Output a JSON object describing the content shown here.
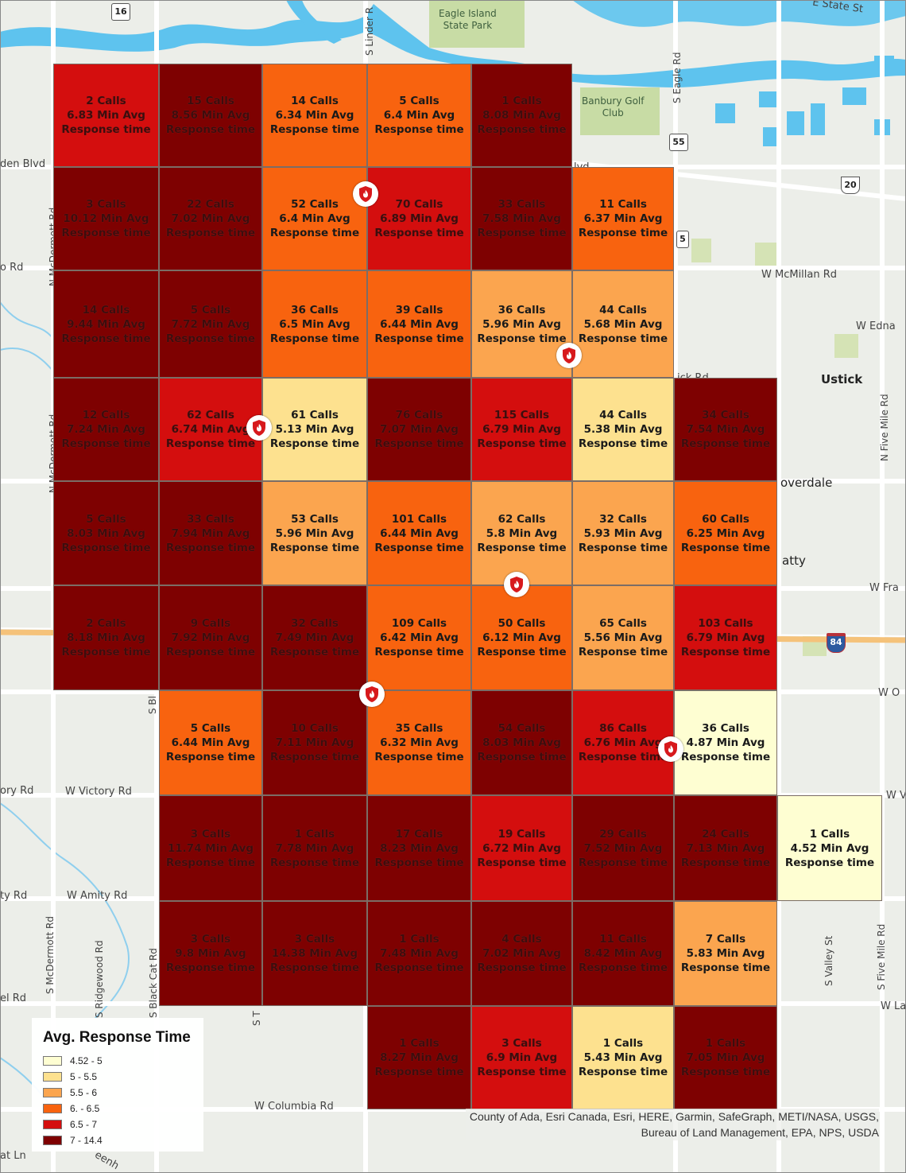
{
  "colors": {
    "bin1": "#fefed2",
    "bin2": "#fde18f",
    "bin3": "#fba54f",
    "bin4": "#f8630f",
    "bin5": "#d40e0e",
    "bin6": "#7e0101",
    "water": "#5ec3ee",
    "park": "#c8dca5",
    "land": "#eceee9",
    "road": "#ffffff"
  },
  "legend": {
    "title": "Avg. Response Time",
    "items": [
      {
        "label": "4.52 - 5",
        "bin": "bin1"
      },
      {
        "label": "5 - 5.5",
        "bin": "bin2"
      },
      {
        "label": "5.5 - 6",
        "bin": "bin3"
      },
      {
        "label": "6. - 6.5",
        "bin": "bin4"
      },
      {
        "label": "6.5 - 7",
        "bin": "bin5"
      },
      {
        "label": "7 - 14.4",
        "bin": "bin6"
      }
    ]
  },
  "credits": {
    "line1": "County of Ada, Esri Canada, Esri, HERE, Garmin, SafeGraph, METI/NASA, USGS,",
    "line2": "Bureau of Land Management, EPA, NPS, USDA"
  },
  "cell_suffix": "Response time",
  "cells": [
    {
      "row": 0,
      "col": 0,
      "calls": "2 Calls",
      "avg": "6.83 Min Avg",
      "bin": "bin5"
    },
    {
      "row": 0,
      "col": 1,
      "calls": "15 Calls",
      "avg": "8.56 Min Avg",
      "bin": "bin6"
    },
    {
      "row": 0,
      "col": 2,
      "calls": "14 Calls",
      "avg": "6.34 Min Avg",
      "bin": "bin4"
    },
    {
      "row": 0,
      "col": 3,
      "calls": "5 Calls",
      "avg": "6.4 Min Avg",
      "bin": "bin4"
    },
    {
      "row": 0,
      "col": 4,
      "calls": "1 Calls",
      "avg": "8.08 Min Avg",
      "bin": "bin6"
    },
    {
      "row": 1,
      "col": 0,
      "calls": "3 Calls",
      "avg": "10.12 Min Avg",
      "bin": "bin6"
    },
    {
      "row": 1,
      "col": 1,
      "calls": "22 Calls",
      "avg": "7.02 Min Avg",
      "bin": "bin6"
    },
    {
      "row": 1,
      "col": 2,
      "calls": "52 Calls",
      "avg": "6.4 Min Avg",
      "bin": "bin4"
    },
    {
      "row": 1,
      "col": 3,
      "calls": "70 Calls",
      "avg": "6.89 Min Avg",
      "bin": "bin5"
    },
    {
      "row": 1,
      "col": 4,
      "calls": "33 Calls",
      "avg": "7.58 Min Avg",
      "bin": "bin6"
    },
    {
      "row": 1,
      "col": 5,
      "calls": "11 Calls",
      "avg": "6.37 Min Avg",
      "bin": "bin4"
    },
    {
      "row": 2,
      "col": 0,
      "calls": "14 Calls",
      "avg": "9.44 Min Avg",
      "bin": "bin6"
    },
    {
      "row": 2,
      "col": 1,
      "calls": "5 Calls",
      "avg": "7.72 Min Avg",
      "bin": "bin6"
    },
    {
      "row": 2,
      "col": 2,
      "calls": "36 Calls",
      "avg": "6.5 Min Avg",
      "bin": "bin4"
    },
    {
      "row": 2,
      "col": 3,
      "calls": "39 Calls",
      "avg": "6.44 Min Avg",
      "bin": "bin4"
    },
    {
      "row": 2,
      "col": 4,
      "calls": "36 Calls",
      "avg": "5.96 Min Avg",
      "bin": "bin3"
    },
    {
      "row": 2,
      "col": 5,
      "calls": "44 Calls",
      "avg": "5.68 Min Avg",
      "bin": "bin3"
    },
    {
      "row": 3,
      "col": 0,
      "calls": "12 Calls",
      "avg": "7.24 Min Avg",
      "bin": "bin6"
    },
    {
      "row": 3,
      "col": 1,
      "calls": "62 Calls",
      "avg": "6.74 Min Avg",
      "bin": "bin5"
    },
    {
      "row": 3,
      "col": 2,
      "calls": "61 Calls",
      "avg": "5.13 Min Avg",
      "bin": "bin2"
    },
    {
      "row": 3,
      "col": 3,
      "calls": "76 Calls",
      "avg": "7.07 Min Avg",
      "bin": "bin6"
    },
    {
      "row": 3,
      "col": 4,
      "calls": "115 Calls",
      "avg": "6.79 Min Avg",
      "bin": "bin5"
    },
    {
      "row": 3,
      "col": 5,
      "calls": "44 Calls",
      "avg": "5.38 Min Avg",
      "bin": "bin2"
    },
    {
      "row": 3,
      "col": 6,
      "calls": "34 Calls",
      "avg": "7.54 Min Avg",
      "bin": "bin6"
    },
    {
      "row": 4,
      "col": 0,
      "calls": "5 Calls",
      "avg": "8.03 Min Avg",
      "bin": "bin6"
    },
    {
      "row": 4,
      "col": 1,
      "calls": "33 Calls",
      "avg": "7.94 Min Avg",
      "bin": "bin6"
    },
    {
      "row": 4,
      "col": 2,
      "calls": "53 Calls",
      "avg": "5.96 Min Avg",
      "bin": "bin3"
    },
    {
      "row": 4,
      "col": 3,
      "calls": "101 Calls",
      "avg": "6.44 Min Avg",
      "bin": "bin4"
    },
    {
      "row": 4,
      "col": 4,
      "calls": "62 Calls",
      "avg": "5.8 Min Avg",
      "bin": "bin3"
    },
    {
      "row": 4,
      "col": 5,
      "calls": "32 Calls",
      "avg": "5.93 Min Avg",
      "bin": "bin3"
    },
    {
      "row": 4,
      "col": 6,
      "calls": "60 Calls",
      "avg": "6.25 Min Avg",
      "bin": "bin4"
    },
    {
      "row": 5,
      "col": 0,
      "calls": "2 Calls",
      "avg": "8.18 Min Avg",
      "bin": "bin6"
    },
    {
      "row": 5,
      "col": 1,
      "calls": "9 Calls",
      "avg": "7.92 Min Avg",
      "bin": "bin6"
    },
    {
      "row": 5,
      "col": 2,
      "calls": "32 Calls",
      "avg": "7.49 Min Avg",
      "bin": "bin6"
    },
    {
      "row": 5,
      "col": 3,
      "calls": "109 Calls",
      "avg": "6.42 Min Avg",
      "bin": "bin4"
    },
    {
      "row": 5,
      "col": 4,
      "calls": "50 Calls",
      "avg": "6.12 Min Avg",
      "bin": "bin4"
    },
    {
      "row": 5,
      "col": 5,
      "calls": "65 Calls",
      "avg": "5.56 Min Avg",
      "bin": "bin3"
    },
    {
      "row": 5,
      "col": 6,
      "calls": "103 Calls",
      "avg": "6.79 Min Avg",
      "bin": "bin5"
    },
    {
      "row": 6,
      "col": 1,
      "calls": "5 Calls",
      "avg": "6.44 Min Avg",
      "bin": "bin4"
    },
    {
      "row": 6,
      "col": 2,
      "calls": "10 Calls",
      "avg": "7.11 Min Avg",
      "bin": "bin6"
    },
    {
      "row": 6,
      "col": 3,
      "calls": "35 Calls",
      "avg": "6.32 Min Avg",
      "bin": "bin4"
    },
    {
      "row": 6,
      "col": 4,
      "calls": "54 Calls",
      "avg": "8.03 Min Avg",
      "bin": "bin6"
    },
    {
      "row": 6,
      "col": 5,
      "calls": "86 Calls",
      "avg": "6.76 Min Avg",
      "bin": "bin5"
    },
    {
      "row": 6,
      "col": 6,
      "calls": "36 Calls",
      "avg": "4.87 Min Avg",
      "bin": "bin1"
    },
    {
      "row": 7,
      "col": 1,
      "calls": "3 Calls",
      "avg": "11.74 Min Avg",
      "bin": "bin6"
    },
    {
      "row": 7,
      "col": 2,
      "calls": "1 Calls",
      "avg": "7.78 Min Avg",
      "bin": "bin6"
    },
    {
      "row": 7,
      "col": 3,
      "calls": "17 Calls",
      "avg": "8.23 Min Avg",
      "bin": "bin6"
    },
    {
      "row": 7,
      "col": 4,
      "calls": "19 Calls",
      "avg": "6.72 Min Avg",
      "bin": "bin5"
    },
    {
      "row": 7,
      "col": 5,
      "calls": "29 Calls",
      "avg": "7.52 Min Avg",
      "bin": "bin6"
    },
    {
      "row": 7,
      "col": 6,
      "calls": "24 Calls",
      "avg": "7.13 Min Avg",
      "bin": "bin6"
    },
    {
      "row": 7,
      "col": 7,
      "calls": "1 Calls",
      "avg": "4.52 Min Avg",
      "bin": "bin1"
    },
    {
      "row": 8,
      "col": 1,
      "calls": "3 Calls",
      "avg": "9.8 Min Avg",
      "bin": "bin6"
    },
    {
      "row": 8,
      "col": 2,
      "calls": "3 Calls",
      "avg": "14.38 Min Avg",
      "bin": "bin6"
    },
    {
      "row": 8,
      "col": 3,
      "calls": "1 Calls",
      "avg": "7.48 Min Avg",
      "bin": "bin6"
    },
    {
      "row": 8,
      "col": 4,
      "calls": "4 Calls",
      "avg": "7.02 Min Avg",
      "bin": "bin6"
    },
    {
      "row": 8,
      "col": 5,
      "calls": "11 Calls",
      "avg": "8.42 Min Avg",
      "bin": "bin6"
    },
    {
      "row": 8,
      "col": 6,
      "calls": "7 Calls",
      "avg": "5.83 Min Avg",
      "bin": "bin3"
    },
    {
      "row": 9,
      "col": 3,
      "calls": "1 Calls",
      "avg": "8.27 Min Avg",
      "bin": "bin6"
    },
    {
      "row": 9,
      "col": 4,
      "calls": "3 Calls",
      "avg": "6.9 Min Avg",
      "bin": "bin5"
    },
    {
      "row": 9,
      "col": 5,
      "calls": "1 Calls",
      "avg": "5.43 Min Avg",
      "bin": "bin2"
    },
    {
      "row": 9,
      "col": 6,
      "calls": "1 Calls",
      "avg": "7.05 Min Avg",
      "bin": "bin6"
    }
  ],
  "stations": [
    {
      "name": "fire-station-1"
    },
    {
      "name": "fire-station-2"
    },
    {
      "name": "fire-station-3"
    },
    {
      "name": "fire-station-4"
    },
    {
      "name": "fire-station-5"
    },
    {
      "name": "fire-station-6"
    }
  ],
  "basemap_labels": {
    "park": "Eagle Island\nState Park",
    "golf": "Banbury Golf\nClub",
    "town_ustick": "Ustick",
    "town_cloverdale": "overdale",
    "town_meridian": "atty",
    "roads": {
      "e_state": "E State St",
      "linder": "S Linder R",
      "eagle": "S Eagle Rd",
      "mcdermott_n": "N McDermott Rd",
      "mcdermott_n2": "N McDermott Rd",
      "mcdermott_s": "S McDermott Rd",
      "chinden": "den Blvd",
      "blvd": "lvd",
      "mcmillan": "W McMillan Rd",
      "edna": "W Edna",
      "ustick_rd": "ick Rd",
      "r_rd": "o Rd",
      "five_mile_n": "N Five Mile Rd",
      "five_mile_s": "S Five Mile Rd",
      "franklin": "W Fra",
      "w_o": "W O",
      "victory": "W Victory Rd",
      "victory_left": "ory Rd",
      "w_v": "W V",
      "amity": "W Amity Rd",
      "amity_left": "ty Rd",
      "ridgewood": "S Ridgewood Rd",
      "black_cat": "S Black Cat Rd",
      "black_cat2": "S Bl",
      "s_t": "S T",
      "valley": "S Valley St",
      "columbia": "W Columbia Rd",
      "el_rd": "el Rd",
      "lake": "W La",
      "at_ln": "at Ln",
      "eenh": "eenh"
    },
    "shields": {
      "sh16": "16",
      "sh55a": "55",
      "sh55b": "5",
      "us20": "20",
      "i84": "84"
    }
  }
}
